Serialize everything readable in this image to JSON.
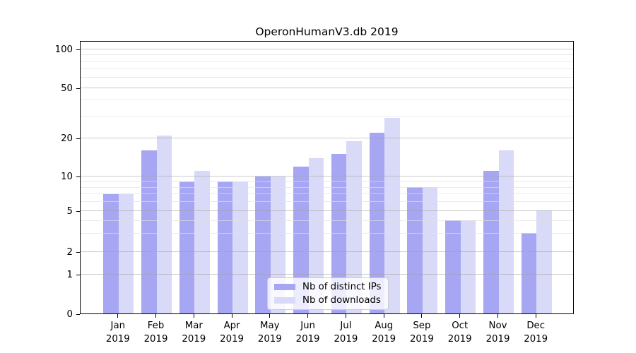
{
  "chart_data": {
    "type": "bar",
    "title": "OperonHumanV3.db 2019",
    "categories": [
      "Jan",
      "Feb",
      "Mar",
      "Apr",
      "May",
      "Jun",
      "Jul",
      "Aug",
      "Sep",
      "Oct",
      "Nov",
      "Dec"
    ],
    "category_year": "2019",
    "series": [
      {
        "name": "Nb of distinct IPs",
        "color": "#a6a6f2",
        "values": [
          7,
          16,
          9,
          9,
          10,
          12,
          15,
          22,
          8,
          4,
          11,
          3
        ]
      },
      {
        "name": "Nb of downloads",
        "color": "#d9d9f8",
        "values": [
          7,
          21,
          11,
          9,
          10,
          14,
          19,
          29,
          8,
          4,
          16,
          5
        ]
      }
    ],
    "yscale": "symlog",
    "yticks": [
      100,
      50,
      20,
      10,
      5,
      2,
      1,
      0
    ],
    "yticks_minor": [
      3,
      4,
      6,
      7,
      8,
      9,
      30,
      40,
      60,
      70,
      80,
      90
    ],
    "ylim": [
      0,
      117
    ],
    "grid": true,
    "legend_position": "lower center"
  }
}
